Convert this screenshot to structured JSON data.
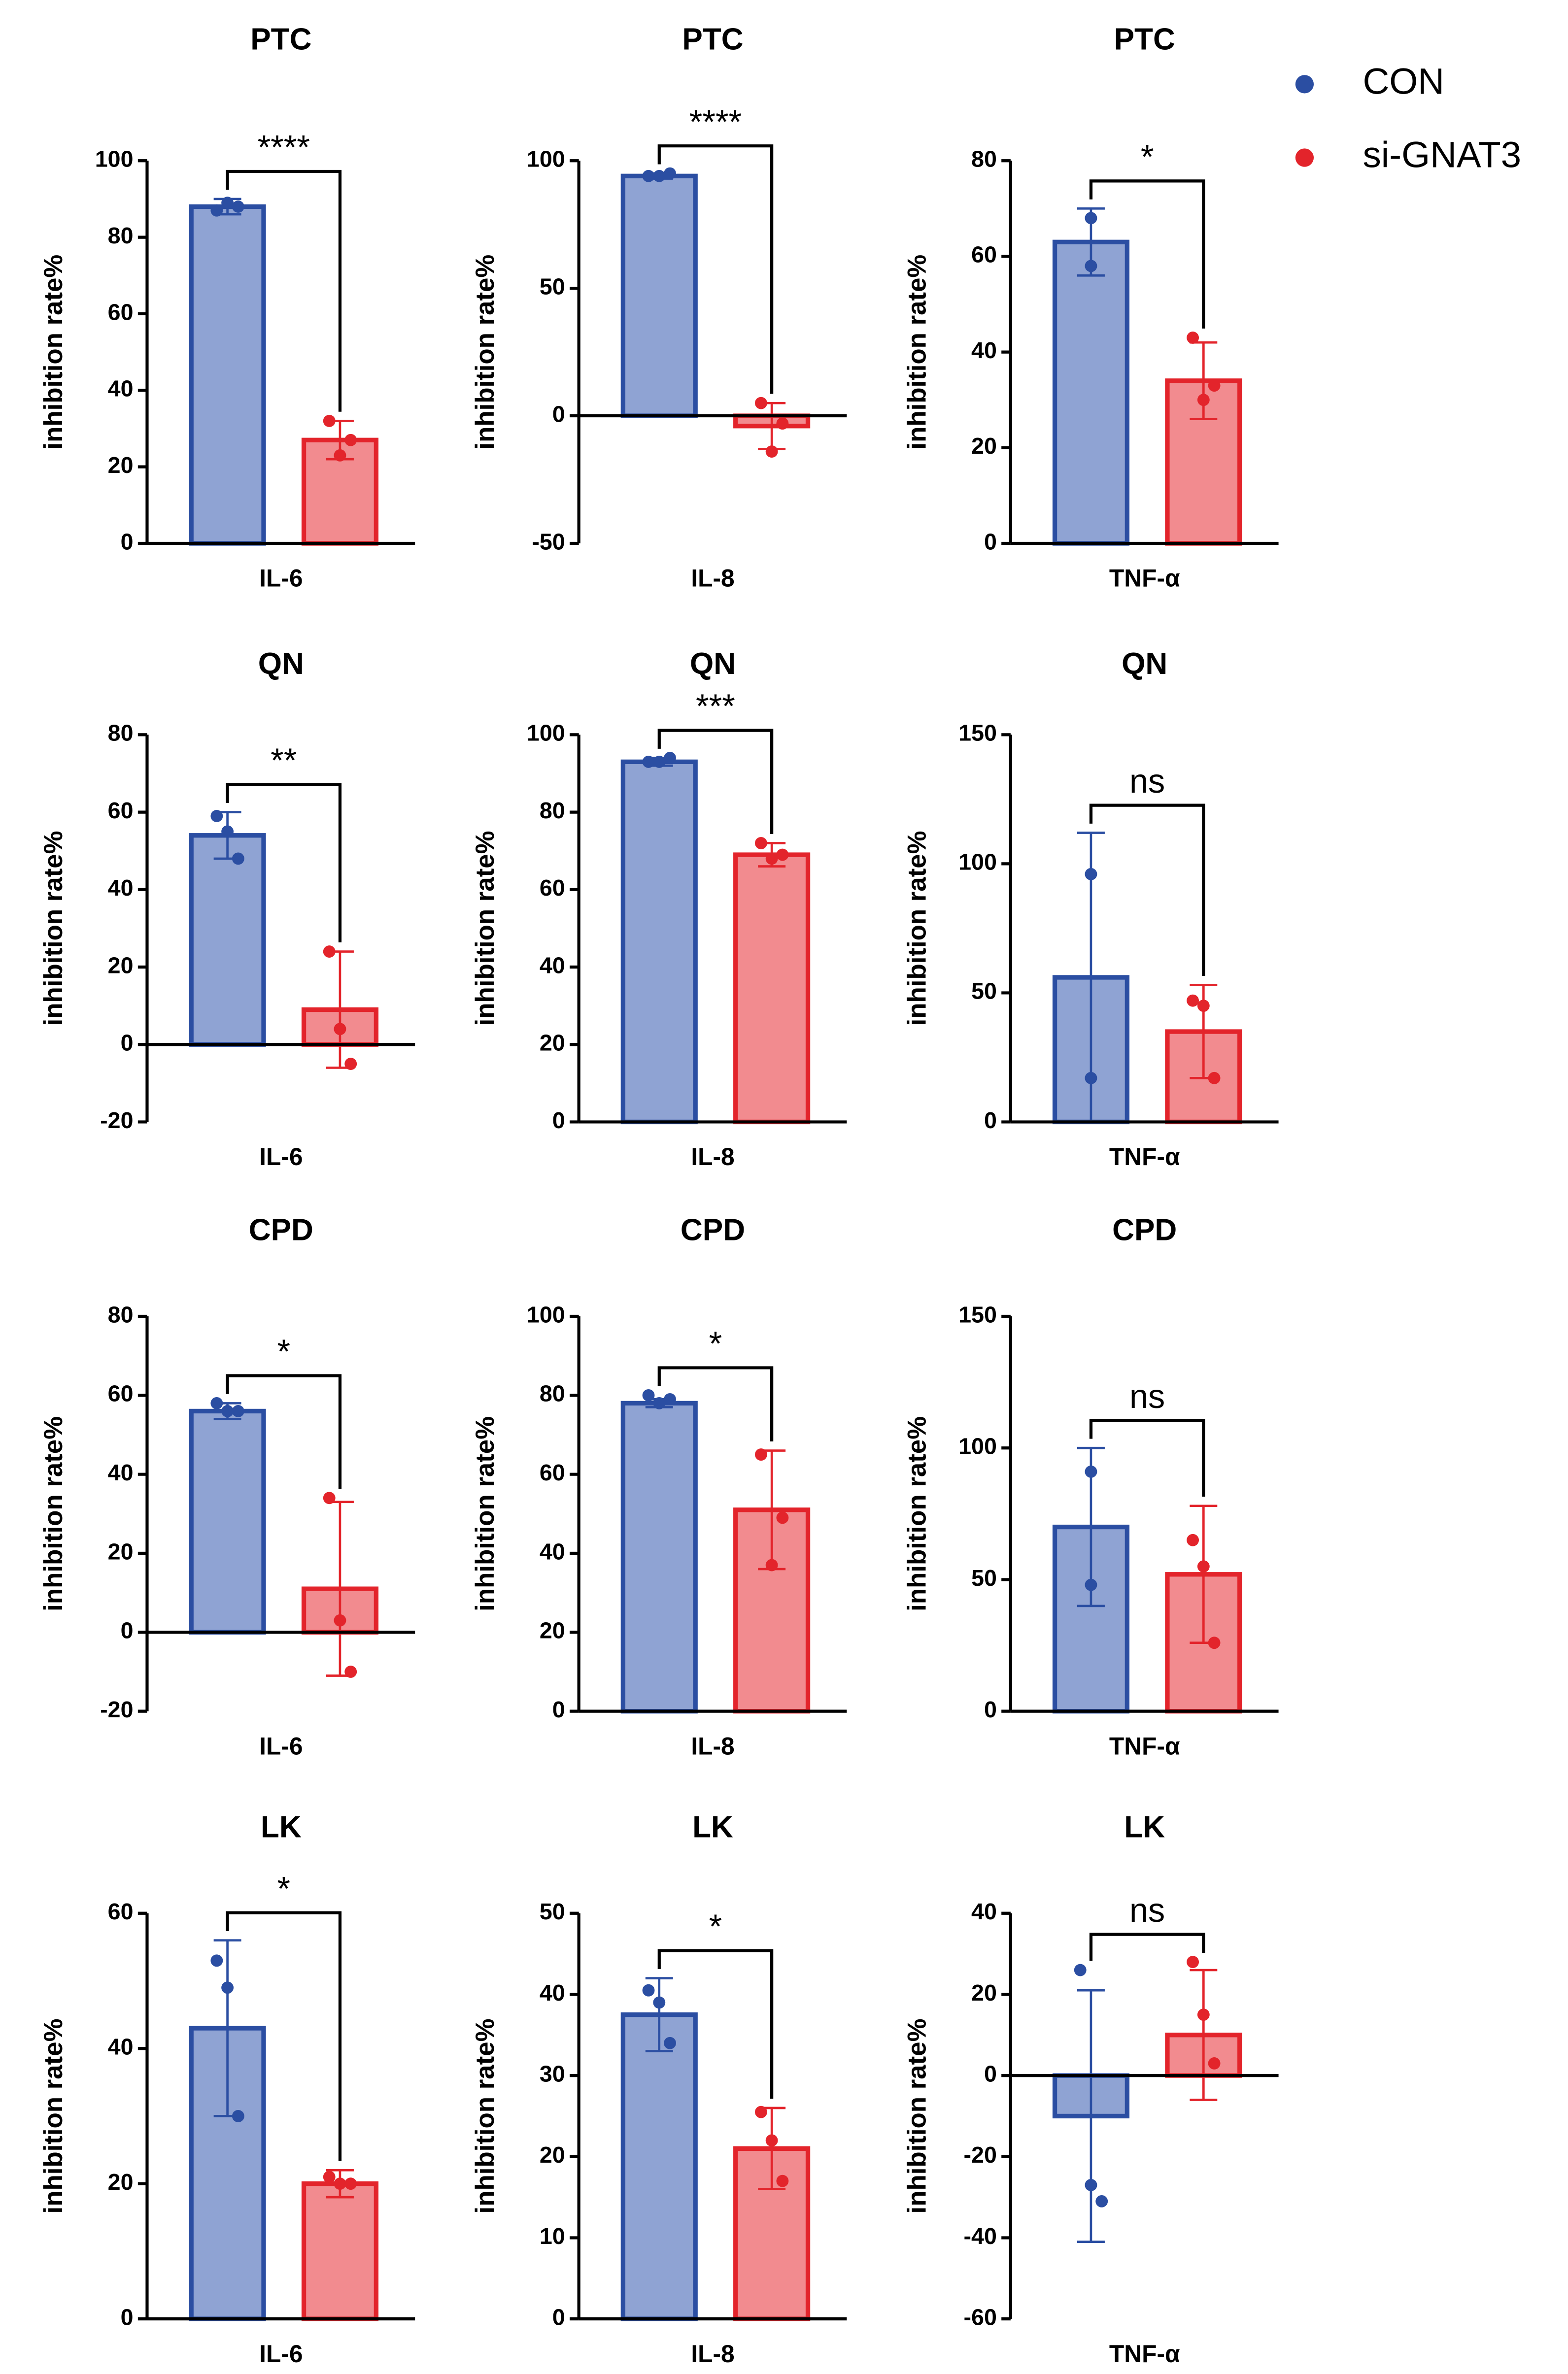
{
  "chart_data": [
    {
      "type": "bar",
      "title": "PTC",
      "ylabel": "inhibition rate%",
      "categories": [
        "IL-6"
      ],
      "ylim": [
        0,
        100
      ],
      "yticks": [
        0,
        20,
        40,
        60,
        80,
        100
      ],
      "annotation": "****",
      "series": [
        {
          "name": "CON",
          "color": "#2b4ea2",
          "fill": "#8fa3d3",
          "values": [
            88
          ],
          "errors": [
            2
          ],
          "points": [
            [
              87,
              89,
              88
            ]
          ]
        },
        {
          "name": "si-GNAT3",
          "color": "#e3242b",
          "fill": "#f28b8f",
          "values": [
            27
          ],
          "errors": [
            5
          ],
          "points": [
            [
              32,
              23,
              27
            ]
          ]
        }
      ]
    },
    {
      "type": "bar",
      "title": "PTC",
      "ylabel": "inhibition rate%",
      "categories": [
        "IL-8"
      ],
      "ylim": [
        -50,
        100
      ],
      "yticks": [
        -50,
        0,
        50,
        100
      ],
      "annotation": "****",
      "series": [
        {
          "name": "CON",
          "color": "#2b4ea2",
          "fill": "#8fa3d3",
          "values": [
            94
          ],
          "errors": [
            1
          ],
          "points": [
            [
              94,
              94,
              95
            ]
          ]
        },
        {
          "name": "si-GNAT3",
          "color": "#e3242b",
          "fill": "#f28b8f",
          "values": [
            -4
          ],
          "errors": [
            9
          ],
          "points": [
            [
              5,
              -14,
              -3
            ]
          ]
        }
      ]
    },
    {
      "type": "bar",
      "title": "PTC",
      "ylabel": "inhibition rate%",
      "categories": [
        "TNF-α"
      ],
      "ylim": [
        0,
        80
      ],
      "yticks": [
        0,
        20,
        40,
        60,
        80
      ],
      "annotation": "*",
      "series": [
        {
          "name": "CON",
          "color": "#2b4ea2",
          "fill": "#8fa3d3",
          "values": [
            63
          ],
          "errors": [
            7
          ],
          "points": [
            [
              68,
              58
            ]
          ]
        },
        {
          "name": "si-GNAT3",
          "color": "#e3242b",
          "fill": "#f28b8f",
          "values": [
            34
          ],
          "errors": [
            8
          ],
          "points": [
            [
              43,
              30,
              33
            ]
          ]
        }
      ]
    },
    {
      "type": "bar",
      "title": "QN",
      "ylabel": "inhibition rate%",
      "categories": [
        "IL-6"
      ],
      "ylim": [
        -20,
        80
      ],
      "yticks": [
        -20,
        0,
        20,
        40,
        60,
        80
      ],
      "annotation": "**",
      "series": [
        {
          "name": "CON",
          "color": "#2b4ea2",
          "fill": "#8fa3d3",
          "values": [
            54
          ],
          "errors": [
            6
          ],
          "points": [
            [
              59,
              55,
              48
            ]
          ]
        },
        {
          "name": "si-GNAT3",
          "color": "#e3242b",
          "fill": "#f28b8f",
          "values": [
            9
          ],
          "errors": [
            15
          ],
          "points": [
            [
              24,
              4,
              -5
            ]
          ]
        }
      ]
    },
    {
      "type": "bar",
      "title": "QN",
      "ylabel": "inhibition rate%",
      "categories": [
        "IL-8"
      ],
      "ylim": [
        0,
        100
      ],
      "yticks": [
        0,
        20,
        40,
        60,
        80,
        100
      ],
      "annotation": "***",
      "series": [
        {
          "name": "CON",
          "color": "#2b4ea2",
          "fill": "#8fa3d3",
          "values": [
            93
          ],
          "errors": [
            1
          ],
          "points": [
            [
              93,
              93,
              94
            ]
          ]
        },
        {
          "name": "si-GNAT3",
          "color": "#e3242b",
          "fill": "#f28b8f",
          "values": [
            69
          ],
          "errors": [
            3
          ],
          "points": [
            [
              72,
              68,
              69
            ]
          ]
        }
      ]
    },
    {
      "type": "bar",
      "title": "QN",
      "ylabel": "inhibition rate%",
      "categories": [
        "TNF-α"
      ],
      "ylim": [
        0,
        150
      ],
      "yticks": [
        0,
        50,
        100,
        150
      ],
      "annotation": "ns",
      "series": [
        {
          "name": "CON",
          "color": "#2b4ea2",
          "fill": "#8fa3d3",
          "values": [
            56
          ],
          "errors": [
            56
          ],
          "points": [
            [
              96,
              17
            ]
          ]
        },
        {
          "name": "si-GNAT3",
          "color": "#e3242b",
          "fill": "#f28b8f",
          "values": [
            35
          ],
          "errors": [
            18
          ],
          "points": [
            [
              47,
              45,
              17
            ]
          ]
        }
      ]
    },
    {
      "type": "bar",
      "title": "CPD",
      "ylabel": "inhibition rate%",
      "categories": [
        "IL-6"
      ],
      "ylim": [
        -20,
        80
      ],
      "yticks": [
        -20,
        0,
        20,
        40,
        60,
        80
      ],
      "annotation": "*",
      "series": [
        {
          "name": "CON",
          "color": "#2b4ea2",
          "fill": "#8fa3d3",
          "values": [
            56
          ],
          "errors": [
            2
          ],
          "points": [
            [
              58,
              56,
              56
            ]
          ]
        },
        {
          "name": "si-GNAT3",
          "color": "#e3242b",
          "fill": "#f28b8f",
          "values": [
            11
          ],
          "errors": [
            22
          ],
          "points": [
            [
              34,
              3,
              -10
            ]
          ]
        }
      ]
    },
    {
      "type": "bar",
      "title": "CPD",
      "ylabel": "inhibition rate%",
      "categories": [
        "IL-8"
      ],
      "ylim": [
        0,
        100
      ],
      "yticks": [
        0,
        20,
        40,
        60,
        80,
        100
      ],
      "annotation": "*",
      "series": [
        {
          "name": "CON",
          "color": "#2b4ea2",
          "fill": "#8fa3d3",
          "values": [
            78
          ],
          "errors": [
            1
          ],
          "points": [
            [
              80,
              78,
              79
            ]
          ]
        },
        {
          "name": "si-GNAT3",
          "color": "#e3242b",
          "fill": "#f28b8f",
          "values": [
            51
          ],
          "errors": [
            15
          ],
          "points": [
            [
              65,
              37,
              49
            ]
          ]
        }
      ]
    },
    {
      "type": "bar",
      "title": "CPD",
      "ylabel": "inhibition rate%",
      "categories": [
        "TNF-α"
      ],
      "ylim": [
        0,
        150
      ],
      "yticks": [
        0,
        50,
        100,
        150
      ],
      "annotation": "ns",
      "series": [
        {
          "name": "CON",
          "color": "#2b4ea2",
          "fill": "#8fa3d3",
          "values": [
            70
          ],
          "errors": [
            30
          ],
          "points": [
            [
              91,
              48
            ]
          ]
        },
        {
          "name": "si-GNAT3",
          "color": "#e3242b",
          "fill": "#f28b8f",
          "values": [
            52
          ],
          "errors": [
            26
          ],
          "points": [
            [
              65,
              55,
              26
            ]
          ]
        }
      ]
    },
    {
      "type": "bar",
      "title": "LK",
      "ylabel": "inhibition rate%",
      "categories": [
        "IL-6"
      ],
      "ylim": [
        0,
        60
      ],
      "yticks": [
        0,
        20,
        40,
        60
      ],
      "annotation": "*",
      "series": [
        {
          "name": "CON",
          "color": "#2b4ea2",
          "fill": "#8fa3d3",
          "values": [
            43
          ],
          "errors": [
            13
          ],
          "points": [
            [
              53,
              49,
              30
            ]
          ]
        },
        {
          "name": "si-GNAT3",
          "color": "#e3242b",
          "fill": "#f28b8f",
          "values": [
            20
          ],
          "errors": [
            2
          ],
          "points": [
            [
              21,
              20,
              20
            ]
          ]
        }
      ]
    },
    {
      "type": "bar",
      "title": "LK",
      "ylabel": "inhibition rate%",
      "categories": [
        "IL-8"
      ],
      "ylim": [
        0,
        50
      ],
      "yticks": [
        0,
        10,
        20,
        30,
        40,
        50
      ],
      "annotation": "*",
      "series": [
        {
          "name": "CON",
          "color": "#2b4ea2",
          "fill": "#8fa3d3",
          "values": [
            37.5
          ],
          "errors": [
            4.5
          ],
          "points": [
            [
              40.5,
              39,
              34
            ]
          ]
        },
        {
          "name": "si-GNAT3",
          "color": "#e3242b",
          "fill": "#f28b8f",
          "values": [
            21
          ],
          "errors": [
            5
          ],
          "points": [
            [
              25.5,
              22,
              17
            ]
          ]
        }
      ]
    },
    {
      "type": "bar",
      "title": "LK",
      "ylabel": "inhibition rate%",
      "categories": [
        "TNF-α"
      ],
      "ylim": [
        -60,
        40
      ],
      "yticks": [
        -60,
        -40,
        -20,
        0,
        20,
        40
      ],
      "annotation": "ns",
      "series": [
        {
          "name": "CON",
          "color": "#2b4ea2",
          "fill": "#8fa3d3",
          "values": [
            -10
          ],
          "errors": [
            31
          ],
          "points": [
            [
              26,
              -27,
              -31
            ]
          ]
        },
        {
          "name": "si-GNAT3",
          "color": "#e3242b",
          "fill": "#f28b8f",
          "values": [
            10
          ],
          "errors": [
            16
          ],
          "points": [
            [
              28,
              15,
              3
            ]
          ]
        }
      ]
    }
  ]
}
